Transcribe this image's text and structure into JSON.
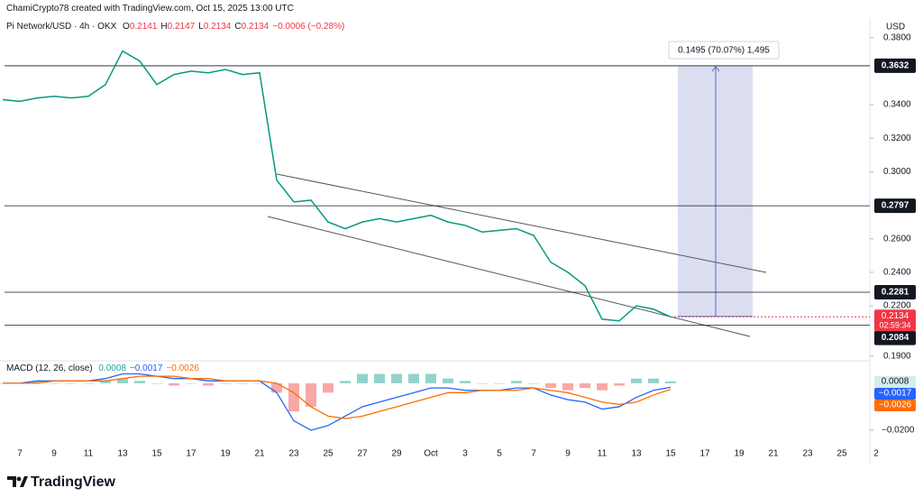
{
  "header": {
    "credit": "ChamiCrypto78 created with TradingView.com, Oct 15, 2025 13:00 UTC",
    "symbol": "Pi Network/USD · 4h · OKX",
    "ohlc": [
      {
        "key": "O",
        "value": "0.2141"
      },
      {
        "key": "H",
        "value": "0.2147"
      },
      {
        "key": "L",
        "value": "0.2134"
      },
      {
        "key": "C",
        "value": "0.2134"
      }
    ],
    "change": "−0.0006 (−0.28%)",
    "currency": "USD"
  },
  "chart_data": [
    {
      "type": "line",
      "color": "#089981",
      "values": [
        0.343,
        0.342,
        0.344,
        0.345,
        0.344,
        0.345,
        0.352,
        0.372,
        0.366,
        0.352,
        0.358,
        0.36,
        0.359,
        0.361,
        0.358,
        0.359,
        0.295,
        0.282,
        0.283,
        0.27,
        0.266,
        0.27,
        0.272,
        0.27,
        0.272,
        0.274,
        0.27,
        0.268,
        0.264,
        0.265,
        0.266,
        0.262,
        0.246,
        0.24,
        0.232,
        0.212,
        0.211,
        0.22,
        0.218,
        0.2134
      ],
      "ylim": [
        0.1872,
        0.3863
      ],
      "yticks": [
        {
          "value": 0.38,
          "label": "0.3800"
        },
        {
          "value": 0.34,
          "label": "0.3400"
        },
        {
          "value": 0.32,
          "label": "0.3200"
        },
        {
          "value": 0.3,
          "label": "0.3000"
        },
        {
          "value": 0.26,
          "label": "0.2600"
        },
        {
          "value": 0.24,
          "label": "0.2400"
        },
        {
          "value": 0.22,
          "label": "0.2200"
        },
        {
          "value": 0.19,
          "label": "0.1900"
        }
      ],
      "grid": false,
      "levels": [
        0.3632,
        0.2797,
        0.2281,
        0.2084
      ],
      "last": {
        "value": 0.2134,
        "countdown": "02:59:34",
        "color": "#f23645"
      },
      "measure": {
        "text": "0.1495 (70.07%) 1,495",
        "top": 0.3632,
        "bottom": 0.2137,
        "color": "#5c6bc0"
      }
    },
    {
      "type": "macd",
      "title": "MACD (12, 26, close)",
      "ylim": [
        -0.025,
        0.0088
      ],
      "yticks": [
        {
          "value": -0.02,
          "label": "−0.0200"
        }
      ],
      "histogram": {
        "color_up": "#26a69a",
        "color_down": "#ef5350",
        "value_label": "0.0008",
        "values": [
          0,
          0,
          0.001,
          0,
          0,
          0,
          0.001,
          0.002,
          0.001,
          0,
          -0.001,
          0,
          -0.001,
          0,
          0,
          0,
          -0.004,
          -0.012,
          -0.01,
          -0.004,
          0.001,
          0.004,
          0.004,
          0.004,
          0.004,
          0.004,
          0.002,
          0.001,
          0,
          0,
          0.001,
          0,
          -0.002,
          -0.003,
          -0.002,
          -0.003,
          -0.001,
          0.002,
          0.002,
          0.0008
        ]
      },
      "macd": {
        "color": "#2962ff",
        "value_label": "−0.0017",
        "values": [
          0,
          0,
          0.001,
          0.001,
          0.001,
          0.001,
          0.002,
          0.004,
          0.004,
          0.003,
          0.002,
          0.002,
          0.001,
          0.001,
          0.001,
          0.001,
          -0.004,
          -0.016,
          -0.02,
          -0.018,
          -0.014,
          -0.01,
          -0.008,
          -0.006,
          -0.004,
          -0.002,
          -0.002,
          -0.003,
          -0.003,
          -0.003,
          -0.002,
          -0.002,
          -0.005,
          -0.007,
          -0.008,
          -0.011,
          -0.01,
          -0.006,
          -0.003,
          -0.0017
        ]
      },
      "signal": {
        "color": "#ff6d00",
        "value_label": "−0.0026",
        "values": [
          0,
          0,
          0,
          0.001,
          0.001,
          0.001,
          0.001,
          0.002,
          0.003,
          0.003,
          0.003,
          0.002,
          0.002,
          0.001,
          0.001,
          0.001,
          0,
          -0.004,
          -0.01,
          -0.014,
          -0.015,
          -0.014,
          -0.012,
          -0.01,
          -0.008,
          -0.006,
          -0.004,
          -0.004,
          -0.003,
          -0.003,
          -0.003,
          -0.002,
          -0.003,
          -0.004,
          -0.006,
          -0.008,
          -0.009,
          -0.008,
          -0.005,
          -0.0026
        ]
      },
      "xticklabels": [
        "7",
        "9",
        "11",
        "13",
        "15",
        "17",
        "19",
        "21",
        "23",
        "25",
        "27",
        "29",
        "Oct",
        "3",
        "5",
        "7",
        "9",
        "11",
        "13",
        "15",
        "17",
        "19",
        "21",
        "23",
        "25",
        "2"
      ]
    }
  ],
  "footer": {
    "brand": "TradingView"
  }
}
